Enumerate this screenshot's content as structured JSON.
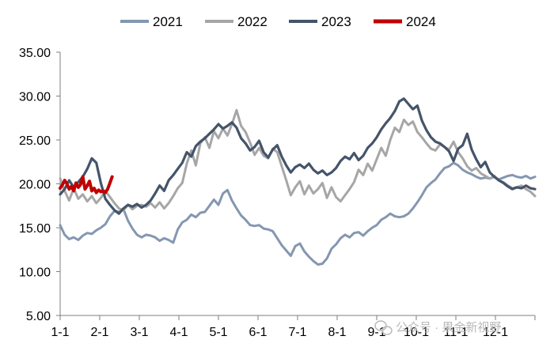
{
  "colors": {
    "2021": "#8497b0",
    "2022": "#a6a6a6",
    "2023": "#44546a",
    "2024": "#c00000",
    "axis": "#7f7f7f",
    "watermark": "#b9b9b9"
  },
  "watermark": {
    "icon": "wechat-icon",
    "text": "公众号 · 果金新视野"
  },
  "chart_data": {
    "type": "line",
    "title": "",
    "xlabel": "",
    "ylabel": "",
    "x_ticks": [
      "1-1",
      "2-1",
      "3-1",
      "4-1",
      "5-1",
      "6-1",
      "7-1",
      "8-1",
      "9-1",
      "10-1",
      "11-1",
      "12-1"
    ],
    "y_ticks": [
      "5.00",
      "10.00",
      "15.00",
      "20.00",
      "25.00",
      "30.00",
      "35.00"
    ],
    "ylim": [
      5,
      35
    ],
    "x_domain_weeks": [
      0,
      52.5
    ],
    "grid": false,
    "legend_position": "top",
    "x_unit": "week of year",
    "series": [
      {
        "name": "2021",
        "x": [
          0,
          0.5,
          1,
          1.5,
          2,
          2.5,
          3,
          3.5,
          4,
          4.5,
          5,
          5.5,
          6,
          6.5,
          7,
          7.5,
          8,
          8.5,
          9,
          9.5,
          10,
          10.5,
          11,
          11.5,
          12,
          12.5,
          13,
          13.5,
          14,
          14.5,
          15,
          15.5,
          16,
          16.5,
          17,
          17.5,
          18,
          18.5,
          19,
          19.5,
          20,
          20.5,
          21,
          21.5,
          22,
          22.5,
          23,
          23.5,
          24,
          24.5,
          25,
          25.5,
          26,
          26.5,
          27,
          27.5,
          28,
          28.5,
          29,
          29.5,
          30,
          30.5,
          31,
          31.5,
          32,
          32.5,
          33,
          33.5,
          34,
          34.5,
          35,
          35.5,
          36,
          36.5,
          37,
          37.5,
          38,
          38.5,
          39,
          39.5,
          40,
          40.5,
          41,
          41.5,
          42,
          42.5,
          43,
          43.5,
          44,
          44.5,
          45,
          45.5,
          46,
          46.5,
          47,
          47.5,
          48,
          48.5,
          49,
          49.5,
          50,
          50.5,
          51,
          51.5,
          52,
          52.5
        ],
        "y": [
          15.3,
          14.2,
          13.7,
          13.9,
          13.6,
          14.1,
          14.4,
          14.3,
          14.7,
          15.0,
          15.4,
          16.3,
          16.9,
          16.8,
          17.1,
          15.8,
          14.9,
          14.2,
          13.9,
          14.2,
          14.1,
          13.9,
          13.5,
          13.8,
          13.6,
          13.3,
          14.8,
          15.6,
          15.9,
          16.5,
          16.2,
          16.7,
          16.8,
          17.5,
          18.2,
          17.6,
          18.9,
          19.3,
          18.1,
          17.2,
          16.4,
          15.9,
          15.3,
          15.2,
          15.3,
          14.9,
          14.8,
          14.6,
          13.8,
          13.0,
          12.4,
          11.8,
          12.9,
          13.2,
          12.3,
          11.7,
          11.2,
          10.8,
          10.9,
          11.5,
          12.6,
          13.1,
          13.8,
          14.2,
          13.9,
          14.4,
          14.5,
          14.1,
          14.6,
          15.0,
          15.3,
          15.9,
          16.2,
          16.6,
          16.3,
          16.2,
          16.3,
          16.6,
          17.2,
          17.9,
          18.7,
          19.6,
          20.1,
          20.5,
          21.2,
          21.8,
          22.0,
          22.4,
          22.1,
          21.6,
          21.3,
          21.1,
          20.8,
          20.6,
          20.7,
          20.6,
          20.8,
          20.5,
          20.7,
          20.9,
          21.0,
          20.8,
          20.7,
          20.9,
          20.6,
          20.8
        ]
      },
      {
        "name": "2022",
        "x": [
          0,
          0.5,
          1,
          1.5,
          2,
          2.5,
          3,
          3.5,
          4,
          4.5,
          5,
          5.5,
          6,
          6.5,
          7,
          7.5,
          8,
          8.5,
          9,
          9.5,
          10,
          10.5,
          11,
          11.5,
          12,
          12.5,
          13,
          13.5,
          14,
          14.5,
          15,
          15.5,
          16,
          16.5,
          17,
          17.5,
          18,
          18.5,
          19,
          19.5,
          20,
          20.5,
          21,
          21.5,
          22,
          22.5,
          23,
          23.5,
          24,
          24.5,
          25,
          25.5,
          26,
          26.5,
          27,
          27.5,
          28,
          28.5,
          29,
          29.5,
          30,
          30.5,
          31,
          31.5,
          32,
          32.5,
          33,
          33.5,
          34,
          34.5,
          35,
          35.5,
          36,
          36.5,
          37,
          37.5,
          38,
          38.5,
          39,
          39.5,
          40,
          40.5,
          41,
          41.5,
          42,
          42.5,
          43,
          43.5,
          44,
          44.5,
          45,
          45.5,
          46,
          46.5,
          47,
          47.5,
          48,
          48.5,
          49,
          49.5,
          50,
          50.5,
          51,
          51.5,
          52,
          52.5
        ],
        "y": [
          20.6,
          19.2,
          18.1,
          19.5,
          18.3,
          18.8,
          18.0,
          18.6,
          17.8,
          18.4,
          19.2,
          18.5,
          17.8,
          17.2,
          17.0,
          17.6,
          17.1,
          17.5,
          17.6,
          17.4,
          17.8,
          17.3,
          17.9,
          17.2,
          17.8,
          18.6,
          19.5,
          20.1,
          22.3,
          23.8,
          22.1,
          24.6,
          25.3,
          24.1,
          26.0,
          25.2,
          26.3,
          25.5,
          26.8,
          28.4,
          26.6,
          25.9,
          24.7,
          23.3,
          24.1,
          23.2,
          22.9,
          24.0,
          23.6,
          22.0,
          20.4,
          18.7,
          19.6,
          20.3,
          18.8,
          19.8,
          18.9,
          19.4,
          20.1,
          18.4,
          19.6,
          18.5,
          18.0,
          18.7,
          19.4,
          20.2,
          21.6,
          21.0,
          22.3,
          21.5,
          22.8,
          24.1,
          23.2,
          25.0,
          26.4,
          25.9,
          27.3,
          26.7,
          27.1,
          25.9,
          25.3,
          24.6,
          24.0,
          23.8,
          24.5,
          24.2,
          23.9,
          24.8,
          23.6,
          22.9,
          22.0,
          21.5,
          21.8,
          21.2,
          20.9,
          20.6,
          20.9,
          20.4,
          20.2,
          19.8,
          19.5,
          19.6,
          19.8,
          19.4,
          19.1,
          18.6
        ]
      },
      {
        "name": "2023",
        "x": [
          0,
          0.5,
          1,
          1.5,
          2,
          2.5,
          3,
          3.5,
          4,
          4.5,
          5,
          5.5,
          6,
          6.5,
          7,
          7.5,
          8,
          8.5,
          9,
          9.5,
          10,
          10.5,
          11,
          11.5,
          12,
          12.5,
          13,
          13.5,
          14,
          14.5,
          15,
          15.5,
          16,
          16.5,
          17,
          17.5,
          18,
          18.5,
          19,
          19.5,
          20,
          20.5,
          21,
          21.5,
          22,
          22.5,
          23,
          23.5,
          24,
          24.5,
          25,
          25.5,
          26,
          26.5,
          27,
          27.5,
          28,
          28.5,
          29,
          29.5,
          30,
          30.5,
          31,
          31.5,
          32,
          32.5,
          33,
          33.5,
          34,
          34.5,
          35,
          35.5,
          36,
          36.5,
          37,
          37.5,
          38,
          38.5,
          39,
          39.5,
          40,
          40.5,
          41,
          41.5,
          42,
          42.5,
          43,
          43.5,
          44,
          44.5,
          45,
          45.5,
          46,
          46.5,
          47,
          47.5,
          48,
          48.5,
          49,
          49.5,
          50,
          50.5,
          51,
          51.5,
          52,
          52.5
        ],
        "y": [
          18.8,
          19.4,
          20.4,
          19.6,
          20.2,
          20.8,
          21.7,
          22.9,
          22.4,
          20.1,
          18.3,
          17.6,
          17.0,
          16.6,
          17.2,
          17.6,
          17.4,
          17.7,
          17.3,
          17.6,
          18.1,
          18.9,
          19.8,
          19.2,
          20.4,
          21.0,
          21.7,
          22.4,
          23.6,
          23.1,
          24.3,
          24.8,
          25.2,
          25.7,
          26.2,
          26.8,
          26.3,
          26.6,
          27.0,
          26.4,
          25.2,
          24.6,
          23.8,
          24.2,
          24.9,
          23.6,
          23.0,
          23.9,
          24.4,
          23.1,
          22.1,
          21.3,
          21.9,
          22.2,
          21.8,
          22.3,
          21.6,
          21.2,
          21.5,
          21.0,
          21.3,
          21.8,
          22.6,
          23.1,
          22.8,
          23.5,
          22.7,
          23.2,
          24.1,
          24.6,
          25.3,
          26.2,
          26.9,
          27.5,
          28.3,
          29.4,
          29.7,
          29.1,
          28.5,
          28.9,
          27.2,
          26.1,
          25.3,
          24.8,
          24.6,
          24.2,
          23.7,
          22.6,
          24.0,
          24.4,
          25.7,
          23.9,
          22.8,
          21.9,
          22.5,
          21.3,
          20.8,
          20.4,
          20.1,
          19.7,
          19.4,
          19.6,
          19.5,
          19.8,
          19.5,
          19.4
        ]
      },
      {
        "name": "2024",
        "x": [
          0,
          0.25,
          0.5,
          0.75,
          1,
          1.25,
          1.5,
          1.75,
          2,
          2.25,
          2.5,
          2.75,
          3,
          3.25,
          3.5,
          3.75,
          4,
          4.25,
          4.5,
          4.75,
          5,
          5.25,
          5.5,
          5.75
        ],
        "y": [
          19.5,
          19.9,
          20.4,
          20.0,
          19.4,
          19.7,
          19.2,
          20.1,
          19.6,
          19.9,
          20.8,
          19.4,
          19.8,
          20.3,
          19.2,
          19.5,
          19.0,
          19.3,
          19.1,
          19.2,
          19.0,
          19.4,
          20.1,
          20.8
        ]
      }
    ]
  }
}
